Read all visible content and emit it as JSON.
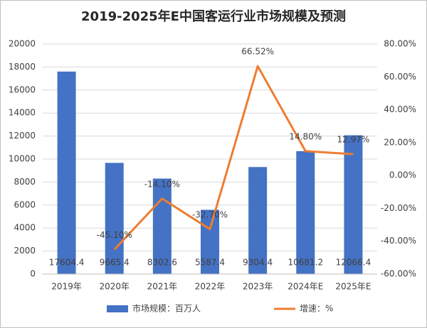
{
  "chart_data": {
    "type": "bar",
    "title": "2019-2025年E中国客运行业市场规模及预测",
    "categories": [
      "2019年",
      "2020年",
      "2021年",
      "2022年",
      "2023年",
      "2024年E",
      "2025年E"
    ],
    "series": [
      {
        "name": "市场规模：百万人",
        "type": "bar",
        "color": "#4472c4",
        "values": [
          17604.4,
          9665.4,
          8302.6,
          5587.4,
          9304.4,
          10681.2,
          12066.4
        ]
      },
      {
        "name": "增速：%",
        "type": "line",
        "axis": "y2",
        "color": "#ed7d31",
        "values": [
          null,
          -45.1,
          -14.1,
          -32.7,
          66.52,
          14.8,
          12.97
        ],
        "value_labels": [
          null,
          "-45.10%",
          "-14.10%",
          "-32.70%",
          "66.52%",
          "14.80%",
          "12.97%"
        ]
      }
    ],
    "ylim": [
      0,
      20000
    ],
    "yticks": [
      0,
      2000,
      4000,
      6000,
      8000,
      10000,
      12000,
      14000,
      16000,
      18000,
      20000
    ],
    "y2lim": [
      -60,
      80
    ],
    "y2ticks": [
      {
        "value": -60,
        "label": "-60.00%"
      },
      {
        "value": -40,
        "label": "-40.00%"
      },
      {
        "value": -20,
        "label": "-20.00%"
      },
      {
        "value": 0,
        "label": "0.00%"
      },
      {
        "value": 20,
        "label": "20.00%"
      },
      {
        "value": 40,
        "label": "40.00%"
      },
      {
        "value": 60,
        "label": "60.00%"
      },
      {
        "value": 80,
        "label": "80.00%"
      }
    ],
    "grid": true,
    "legend": "bottom"
  }
}
